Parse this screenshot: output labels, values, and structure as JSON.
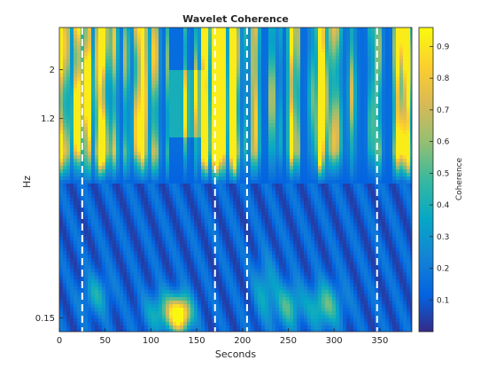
{
  "chart_data": {
    "type": "heatmap",
    "title": "Wavelet Coherence",
    "xlabel": "Seconds",
    "ylabel": "Hz",
    "colorbar_label": "Coherence",
    "colormap": "parula",
    "x_range": [
      0,
      385
    ],
    "x_ticks": [
      0,
      50,
      100,
      150,
      200,
      250,
      300,
      350
    ],
    "y_scale": "log",
    "y_range": [
      0.13,
      3.1
    ],
    "y_ticks": [
      {
        "value": 0.15,
        "label": "0.15"
      },
      {
        "value": 1.2,
        "label": "1.2"
      },
      {
        "value": 2,
        "label": "2"
      }
    ],
    "colorbar_range": [
      0,
      0.96
    ],
    "colorbar_ticks": [
      0.1,
      0.2,
      0.3,
      0.4,
      0.5,
      0.6,
      0.7,
      0.8,
      0.9
    ],
    "cone_of_influence_lines_x": [
      25,
      170,
      205,
      347
    ],
    "description_regions": {
      "high_freq_band": {
        "y_from": 0.6,
        "y_to": 3.1,
        "coherence": "alternating 0.1-0.8 vertical streaks"
      },
      "low_freq_band": {
        "y_from": 0.13,
        "y_to": 0.6,
        "coherence": "mostly 0.1-0.3 with peak ~0.9 near x=130, y=0.15"
      }
    }
  }
}
